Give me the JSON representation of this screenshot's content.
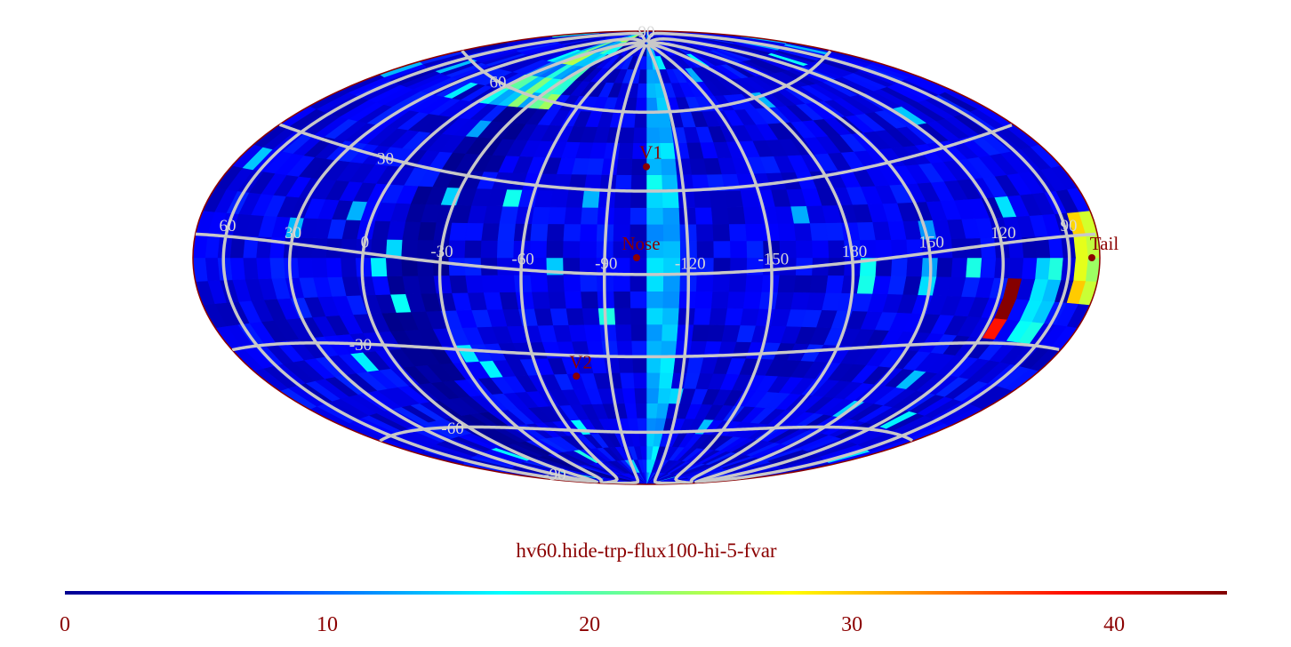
{
  "chart_data": {
    "type": "heatmap",
    "projection": "hammer-aitoff all-sky",
    "title": "hv60.hide-trp-flux100-hi-5-fvar",
    "colormap": "jet",
    "colorbar": {
      "range": [
        0,
        44.3
      ],
      "ticks": [
        0,
        10,
        20,
        30,
        40
      ],
      "tick_labels": [
        "0",
        "10",
        "20",
        "30",
        "40"
      ],
      "orientation": "horizontal",
      "placement": "bottom"
    },
    "grid": true,
    "grid_color": "#c8c8c8",
    "meridian_labels": [
      "60",
      "30",
      "0",
      "-30",
      "-60",
      "-90",
      "-120",
      "-150",
      "180",
      "150",
      "120",
      "90"
    ],
    "meridian_values": [
      60,
      30,
      0,
      -30,
      -60,
      -90,
      -120,
      -150,
      180,
      150,
      120,
      90
    ],
    "parallel_labels": [
      "90",
      "60",
      "30",
      "-30",
      "-60",
      "-90"
    ],
    "parallel_values": [
      90,
      60,
      30,
      -30,
      -60,
      -90
    ],
    "markers": [
      {
        "label": "Nose",
        "lon": 3.5,
        "lat": 0
      },
      {
        "label": "V1",
        "lon": 0,
        "lat": 33
      },
      {
        "label": "V2",
        "lon": 32,
        "lat": -43
      },
      {
        "label": "Tail",
        "lon": -176,
        "lat": 0
      }
    ],
    "marker_color": "#8b0000",
    "value_features": {
      "background": [
        2,
        8
      ],
      "bright_stripe_near_center": [
        12,
        17
      ],
      "hot_spot_max": 44
    }
  }
}
